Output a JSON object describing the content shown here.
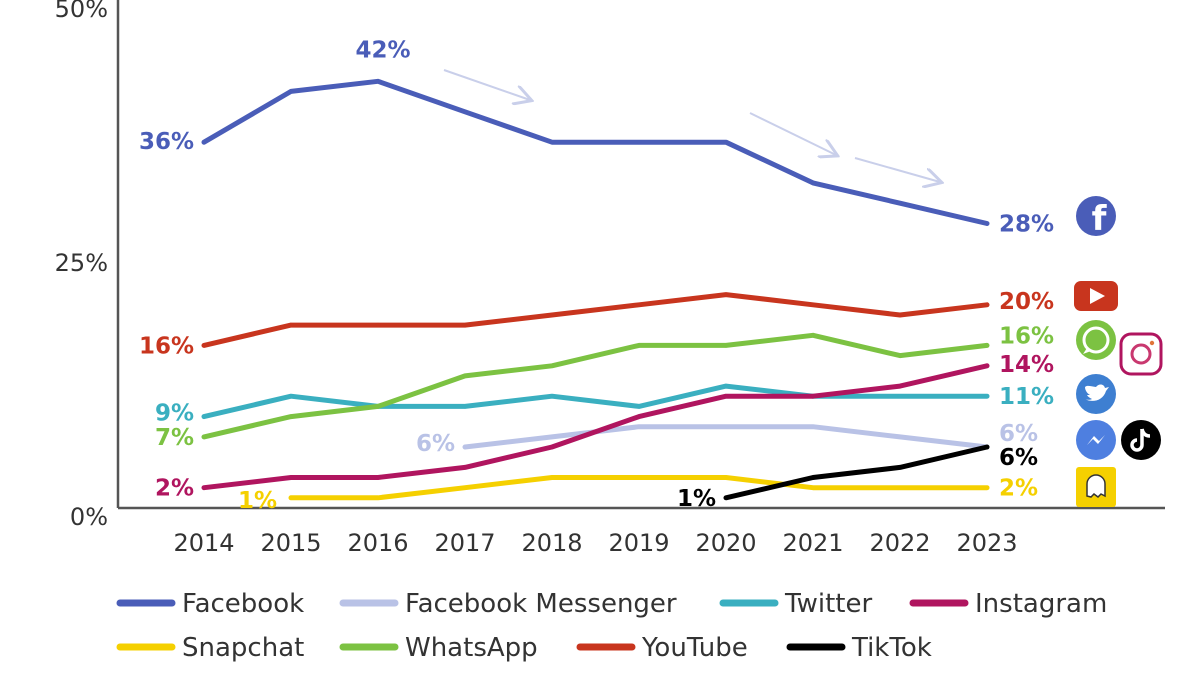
{
  "chart_data": {
    "type": "line",
    "title": "",
    "xlabel": "",
    "ylabel": "",
    "x": [
      2014,
      2015,
      2016,
      2017,
      2018,
      2019,
      2020,
      2021,
      2022,
      2023
    ],
    "x_tick_labels": [
      "2014",
      "2015",
      "2016",
      "2017",
      "2018",
      "2019",
      "2020",
      "2021",
      "2022",
      "2023"
    ],
    "ylim": [
      0,
      50
    ],
    "y_ticks": [
      0,
      25,
      50
    ],
    "y_tick_labels": [
      "0%",
      "25%",
      "50%"
    ],
    "grid": false,
    "legend_position": "bottom",
    "series": [
      {
        "name": "Facebook",
        "color": "#4a5db8",
        "icon": "facebook-icon",
        "values": [
          36,
          41,
          42,
          39,
          36,
          36,
          36,
          32,
          30,
          28
        ],
        "labels": [
          {
            "index": 0,
            "text": "36%"
          },
          {
            "index": 2,
            "text": "42%"
          },
          {
            "index": 9,
            "text": "28%"
          }
        ]
      },
      {
        "name": "Facebook Messenger",
        "color": "#b9c2e6",
        "icon": "messenger-icon",
        "values": [
          null,
          null,
          null,
          6,
          7,
          8,
          8,
          8,
          7,
          6
        ],
        "labels": [
          {
            "index": 3,
            "text": "6%"
          },
          {
            "index": 9,
            "text": "6%"
          }
        ]
      },
      {
        "name": "Twitter",
        "color": "#3aafc0",
        "icon": "twitter-icon",
        "values": [
          9,
          11,
          10,
          10,
          11,
          10,
          12,
          11,
          11,
          11
        ],
        "labels": [
          {
            "index": 0,
            "text": "9%"
          },
          {
            "index": 9,
            "text": "11%"
          }
        ]
      },
      {
        "name": "Instagram",
        "color": "#b0155f",
        "icon": "instagram-icon",
        "values": [
          2,
          3,
          3,
          4,
          6,
          9,
          11,
          11,
          12,
          14
        ],
        "labels": [
          {
            "index": 0,
            "text": "2%"
          },
          {
            "index": 9,
            "text": "14%"
          }
        ]
      },
      {
        "name": "Snapchat",
        "color": "#f5d000",
        "icon": "snapchat-icon",
        "values": [
          null,
          1,
          1,
          2,
          3,
          3,
          3,
          2,
          2,
          2
        ],
        "labels": [
          {
            "index": 1,
            "text": "1%"
          },
          {
            "index": 9,
            "text": "2%"
          }
        ]
      },
      {
        "name": "WhatsApp",
        "color": "#7cc242",
        "icon": "whatsapp-icon",
        "values": [
          7,
          9,
          10,
          13,
          14,
          16,
          16,
          17,
          15,
          16
        ],
        "labels": [
          {
            "index": 0,
            "text": "7%"
          },
          {
            "index": 9,
            "text": "16%"
          }
        ]
      },
      {
        "name": "YouTube",
        "color": "#c8351e",
        "icon": "youtube-icon",
        "values": [
          16,
          18,
          18,
          18,
          19,
          20,
          21,
          20,
          19,
          20
        ],
        "labels": [
          {
            "index": 0,
            "text": "16%"
          },
          {
            "index": 9,
            "text": "20%"
          }
        ]
      },
      {
        "name": "TikTok",
        "color": "#000000",
        "icon": "tiktok-icon",
        "values": [
          null,
          null,
          null,
          null,
          null,
          null,
          1,
          3,
          4,
          6
        ],
        "labels": [
          {
            "index": 6,
            "text": "1%"
          },
          {
            "index": 9,
            "text": "6%"
          }
        ]
      }
    ]
  }
}
